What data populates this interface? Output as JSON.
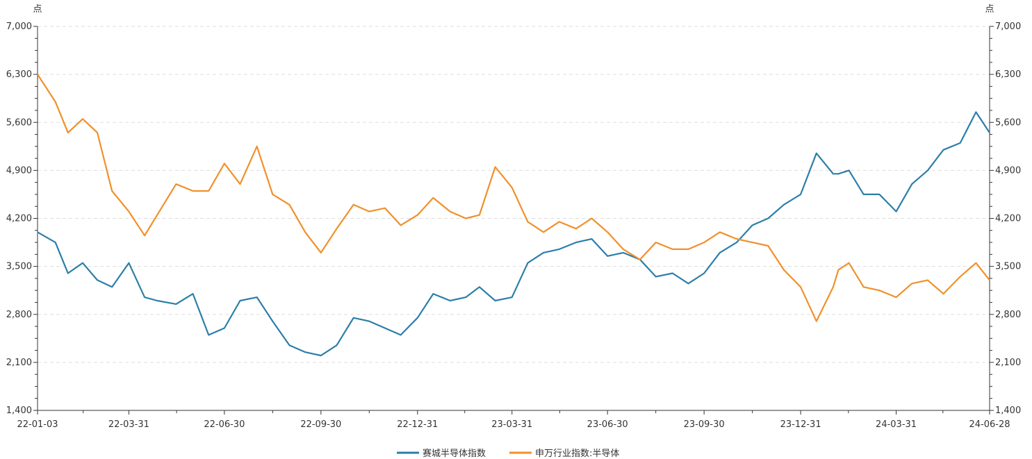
{
  "chart_data": {
    "type": "line",
    "title": "",
    "xlabel": "",
    "y_unit_left": "点",
    "y_unit_right": "点",
    "ylim": [
      1400,
      7000
    ],
    "y_ticks": [
      "7,000",
      "6,300",
      "5,600",
      "4,900",
      "4,200",
      "3,500",
      "2,800",
      "2,100",
      "1,400"
    ],
    "x_tick_labels": [
      "22-01-03",
      "22-03-31",
      "22-06-30",
      "22-09-30",
      "22-12-31",
      "23-03-31",
      "23-06-30",
      "23-09-30",
      "23-12-31",
      "24-03-31",
      "24-06-28"
    ],
    "grid": "horizontal-dashed",
    "legend_position": "bottom-center",
    "x": [
      "22-01-03",
      "22-01-20",
      "22-02-01",
      "22-02-15",
      "22-03-01",
      "22-03-15",
      "22-03-31",
      "22-04-15",
      "22-04-27",
      "22-05-15",
      "22-05-31",
      "22-06-15",
      "22-06-30",
      "22-07-15",
      "22-07-31",
      "22-08-15",
      "22-08-31",
      "22-09-15",
      "22-09-30",
      "22-10-15",
      "22-10-31",
      "22-11-15",
      "22-11-30",
      "22-12-15",
      "22-12-31",
      "23-01-15",
      "23-01-31",
      "23-02-15",
      "23-02-28",
      "23-03-15",
      "23-03-31",
      "23-04-15",
      "23-04-30",
      "23-05-15",
      "23-05-31",
      "23-06-15",
      "23-06-30",
      "23-07-15",
      "23-07-31",
      "23-08-15",
      "23-08-31",
      "23-09-15",
      "23-09-30",
      "23-10-15",
      "23-10-31",
      "23-11-15",
      "23-11-30",
      "23-12-15",
      "23-12-31",
      "24-01-15",
      "24-01-31",
      "24-02-05",
      "24-02-15",
      "24-02-29",
      "24-03-15",
      "24-03-31",
      "24-04-15",
      "24-04-30",
      "24-05-15",
      "24-05-31",
      "24-06-15",
      "24-06-28"
    ],
    "series": [
      {
        "name": "赛城半导体指数",
        "color": "#2b7ea8",
        "values": [
          4000,
          3850,
          3400,
          3550,
          3300,
          3200,
          3550,
          3050,
          3000,
          2950,
          3100,
          2500,
          2600,
          3000,
          3050,
          2700,
          2350,
          2250,
          2200,
          2350,
          2750,
          2700,
          2600,
          2500,
          2750,
          3100,
          3000,
          3050,
          3200,
          3000,
          3050,
          3550,
          3700,
          3750,
          3850,
          3900,
          3650,
          3700,
          3600,
          3350,
          3400,
          3250,
          3400,
          3700,
          3850,
          4100,
          4200,
          4400,
          4550,
          5150,
          4850,
          4850,
          4900,
          4550,
          4550,
          4300,
          4700,
          4900,
          5200,
          5300,
          5750,
          5450
        ]
      },
      {
        "name": "申万行业指数:半导体",
        "color": "#f0902a",
        "values": [
          6300,
          5900,
          5450,
          5650,
          5450,
          4600,
          4300,
          3950,
          4250,
          4700,
          4600,
          4600,
          5000,
          4700,
          5250,
          4550,
          4400,
          4000,
          3700,
          4050,
          4400,
          4300,
          4350,
          4100,
          4250,
          4500,
          4300,
          4200,
          4250,
          4950,
          4650,
          4150,
          4000,
          4150,
          4050,
          4200,
          4000,
          3750,
          3600,
          3850,
          3750,
          3750,
          3850,
          4000,
          3900,
          3850,
          3800,
          3450,
          3200,
          2700,
          3200,
          3450,
          3550,
          3200,
          3150,
          3050,
          3250,
          3300,
          3100,
          3350,
          3550,
          3300
        ]
      }
    ]
  }
}
